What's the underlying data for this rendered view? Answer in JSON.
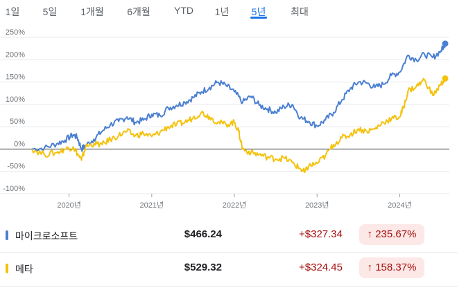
{
  "tabs": [
    {
      "label": "1일"
    },
    {
      "label": "5일"
    },
    {
      "label": "1개월"
    },
    {
      "label": "6개월"
    },
    {
      "label": "YTD"
    },
    {
      "label": "1년"
    },
    {
      "label": "5년"
    },
    {
      "label": "최대"
    }
  ],
  "active_tab": "5년",
  "legend": [
    {
      "name": "마이크로소프트",
      "price": "$466.24",
      "change": "+$327.34",
      "percent": "235.67%",
      "color": "#4a7fd1",
      "arrow": "arrow-up-icon"
    },
    {
      "name": "메타",
      "price": "$529.32",
      "change": "+$324.45",
      "percent": "158.37%",
      "color": "#f4c20d",
      "arrow": "arrow-up-icon"
    }
  ],
  "chart_data": {
    "type": "line",
    "title": "",
    "xlabel": "",
    "ylabel": "",
    "y_ticks": [
      "250%",
      "200%",
      "150%",
      "100%",
      "50%",
      "0%",
      "-50%",
      "-100%"
    ],
    "ylim": [
      -100,
      250
    ],
    "x_ticks": [
      "2020년",
      "2021년",
      "2022년",
      "2023년",
      "2024년"
    ],
    "x_tick_values": [
      2020.0,
      2021.0,
      2022.0,
      2023.0,
      2024.0
    ],
    "xlim": [
      2019.55,
      2024.55
    ],
    "grid": "horizontal",
    "series": [
      {
        "name": "마이크로소프트",
        "color": "#4a7fd1",
        "x": [
          2019.55,
          2019.7,
          2019.85,
          2019.95,
          2020.05,
          2020.1,
          2020.15,
          2020.2,
          2020.3,
          2020.4,
          2020.5,
          2020.6,
          2020.7,
          2020.8,
          2020.9,
          2021.0,
          2021.1,
          2021.2,
          2021.3,
          2021.4,
          2021.5,
          2021.6,
          2021.7,
          2021.8,
          2021.9,
          2022.0,
          2022.1,
          2022.2,
          2022.3,
          2022.4,
          2022.5,
          2022.6,
          2022.7,
          2022.8,
          2022.9,
          2023.0,
          2023.1,
          2023.2,
          2023.3,
          2023.4,
          2023.5,
          2023.6,
          2023.7,
          2023.8,
          2023.9,
          2024.0,
          2024.1,
          2024.2,
          2024.3,
          2024.4,
          2024.5,
          2024.55
        ],
        "values": [
          0,
          2,
          12,
          20,
          32,
          26,
          0,
          8,
          22,
          40,
          55,
          62,
          72,
          60,
          65,
          78,
          75,
          92,
          98,
          105,
          115,
          128,
          138,
          150,
          142,
          128,
          105,
          118,
          98,
          90,
          82,
          95,
          100,
          70,
          62,
          52,
          65,
          82,
          110,
          135,
          150,
          148,
          138,
          145,
          165,
          172,
          210,
          200,
          212,
          205,
          220,
          236
        ]
      },
      {
        "name": "메타",
        "color": "#f4c20d",
        "x": [
          2019.55,
          2019.7,
          2019.85,
          2019.95,
          2020.05,
          2020.1,
          2020.15,
          2020.2,
          2020.3,
          2020.4,
          2020.5,
          2020.6,
          2020.7,
          2020.8,
          2020.9,
          2021.0,
          2021.1,
          2021.2,
          2021.3,
          2021.4,
          2021.5,
          2021.6,
          2021.7,
          2021.8,
          2021.9,
          2022.0,
          2022.05,
          2022.1,
          2022.2,
          2022.3,
          2022.4,
          2022.5,
          2022.6,
          2022.7,
          2022.8,
          2022.85,
          2022.9,
          2023.0,
          2023.1,
          2023.2,
          2023.3,
          2023.4,
          2023.5,
          2023.6,
          2023.7,
          2023.8,
          2023.9,
          2024.0,
          2024.05,
          2024.1,
          2024.2,
          2024.3,
          2024.4,
          2024.5,
          2024.55
        ],
        "values": [
          0,
          -12,
          -8,
          0,
          5,
          -10,
          -25,
          5,
          12,
          10,
          22,
          30,
          40,
          30,
          35,
          28,
          38,
          50,
          55,
          60,
          70,
          82,
          72,
          60,
          55,
          60,
          40,
          0,
          -8,
          -12,
          -18,
          -22,
          -20,
          -30,
          -45,
          -52,
          -38,
          -32,
          -15,
          10,
          25,
          32,
          45,
          40,
          45,
          60,
          68,
          72,
          95,
          130,
          140,
          155,
          120,
          145,
          158
        ]
      }
    ]
  }
}
